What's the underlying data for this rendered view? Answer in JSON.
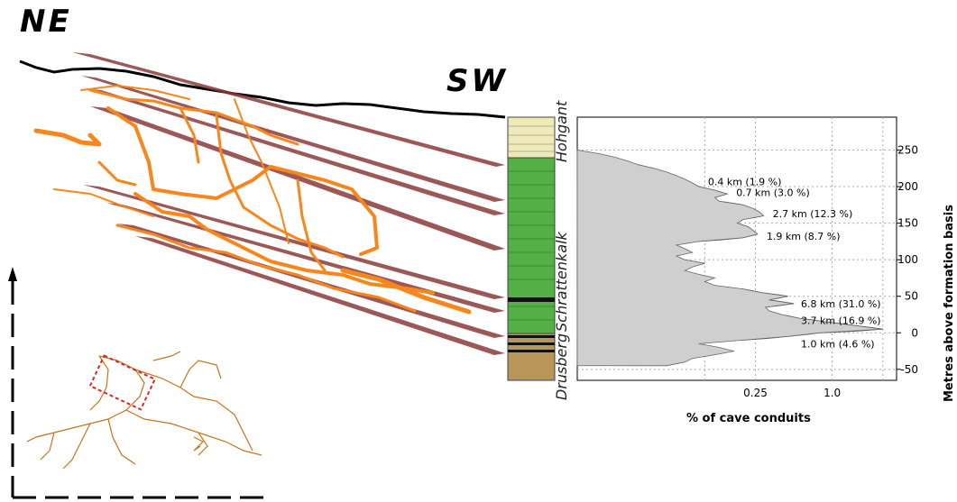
{
  "labels": {
    "ne": "NE",
    "sw": "SW"
  },
  "column": {
    "formations": [
      "Hohgant",
      "Schrattenkalk",
      "Drusberg"
    ]
  },
  "colors": {
    "cave": "#f7861c",
    "strata": "#8b3a3a",
    "surface": "#000000"
  },
  "chart_data": {
    "type": "area",
    "xlabel": "% of cave conduits",
    "ylabel": "Metres above formation basis",
    "x_scale": "log",
    "x_ticks": [
      "0.25",
      "1.0"
    ],
    "y_ticks": [
      250,
      200,
      150,
      100,
      50,
      0,
      -50
    ],
    "ylim": [
      -65,
      295
    ],
    "grid": true,
    "profile": [
      [
        -45,
        0.05
      ],
      [
        -40,
        0.07
      ],
      [
        -35,
        0.08
      ],
      [
        -30,
        0.12
      ],
      [
        -25,
        0.17
      ],
      [
        -20,
        0.13
      ],
      [
        -15,
        0.09
      ],
      [
        -10,
        0.2
      ],
      [
        -5,
        0.45
      ],
      [
        0,
        0.8
      ],
      [
        5,
        2.5
      ],
      [
        10,
        1.5
      ],
      [
        15,
        0.9
      ],
      [
        20,
        0.55
      ],
      [
        25,
        0.4
      ],
      [
        30,
        0.32
      ],
      [
        35,
        0.3
      ],
      [
        40,
        0.5
      ],
      [
        45,
        0.32
      ],
      [
        50,
        0.45
      ],
      [
        55,
        0.28
      ],
      [
        60,
        0.2
      ],
      [
        65,
        0.12
      ],
      [
        70,
        0.1
      ],
      [
        75,
        0.12
      ],
      [
        80,
        0.09
      ],
      [
        85,
        0.07
      ],
      [
        90,
        0.08
      ],
      [
        95,
        0.1
      ],
      [
        100,
        0.07
      ],
      [
        105,
        0.06
      ],
      [
        110,
        0.08
      ],
      [
        115,
        0.07
      ],
      [
        120,
        0.06
      ],
      [
        125,
        0.09
      ],
      [
        130,
        0.2
      ],
      [
        135,
        0.26
      ],
      [
        140,
        0.24
      ],
      [
        145,
        0.22
      ],
      [
        150,
        0.18
      ],
      [
        155,
        0.2
      ],
      [
        160,
        0.29
      ],
      [
        165,
        0.27
      ],
      [
        170,
        0.24
      ],
      [
        175,
        0.2
      ],
      [
        180,
        0.13
      ],
      [
        185,
        0.12
      ],
      [
        190,
        0.15
      ],
      [
        195,
        0.12
      ],
      [
        200,
        0.09
      ],
      [
        205,
        0.08
      ],
      [
        210,
        0.07
      ],
      [
        215,
        0.06
      ],
      [
        220,
        0.05
      ],
      [
        225,
        0.04
      ],
      [
        230,
        0.03
      ],
      [
        235,
        0.025
      ],
      [
        240,
        0.02
      ],
      [
        245,
        0.015
      ],
      [
        250,
        0.01
      ]
    ],
    "bands": [
      {
        "from": 200,
        "to": 212,
        "color": "#a7b8e8",
        "label": "0.4 km (1.9 %)",
        "label_y": 207
      },
      {
        "from": 186,
        "to": 200,
        "color": "#f4a9a4",
        "label": "0.7 km (3.0 %)",
        "label_y": 192
      },
      {
        "from": 152,
        "to": 186,
        "color": "#f9b672",
        "label": "2.7 km (12.3 %)",
        "label_y": 163
      },
      {
        "from": 125,
        "to": 150,
        "color": "#c0e4ae",
        "label": "1.9 km (8.7 %)",
        "label_y": 132
      },
      {
        "from": 30,
        "to": 60,
        "color": "#d8b6e0",
        "label": "6.8 km (31.0 %)",
        "label_y": 40
      },
      {
        "from": 0,
        "to": 30,
        "color": "#2aa6c6",
        "label": "3.7 km (16.9 %)",
        "label_y": 17
      },
      {
        "from": -10,
        "to": 0,
        "color": "#f5f500",
        "label": "1.0 km (4.6 %)",
        "label_y": -15
      }
    ]
  }
}
